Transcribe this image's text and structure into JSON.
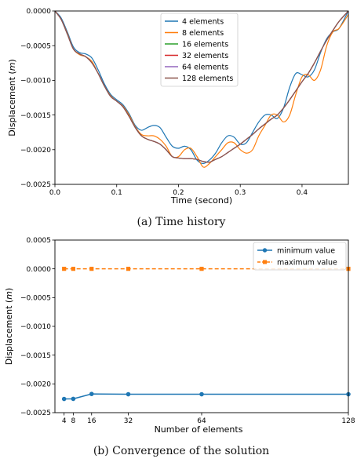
{
  "chart_data": [
    {
      "type": "line",
      "caption": "(a) Time history",
      "xlabel": "Time (second)",
      "ylabel_main": "Displacement (",
      "ylabel_unit": "m",
      "ylabel_end": ")",
      "xlim": [
        0,
        0.475
      ],
      "ylim": [
        -0.0025,
        0.0
      ],
      "xticks": [
        0.0,
        0.1,
        0.2,
        0.3,
        0.4
      ],
      "xtick_labels": [
        "0.0",
        "0.1",
        "0.2",
        "0.3",
        "0.4"
      ],
      "yticks": [
        0.0,
        -0.0005,
        -0.001,
        -0.0015,
        -0.002,
        -0.0025
      ],
      "ytick_labels": [
        "0.0000",
        "−0.0005",
        "−0.0010",
        "−0.0015",
        "−0.0020",
        "−0.0025"
      ],
      "grid": false,
      "legend_position": "top-center",
      "series": [
        {
          "name": "4 elements",
          "color": "#1f77b4",
          "x": [
            0,
            0.01,
            0.02,
            0.03,
            0.04,
            0.05,
            0.06,
            0.07,
            0.08,
            0.09,
            0.1,
            0.11,
            0.12,
            0.13,
            0.14,
            0.15,
            0.16,
            0.17,
            0.18,
            0.19,
            0.2,
            0.21,
            0.22,
            0.23,
            0.24,
            0.25,
            0.26,
            0.27,
            0.28,
            0.29,
            0.3,
            0.31,
            0.32,
            0.33,
            0.34,
            0.35,
            0.36,
            0.37,
            0.38,
            0.39,
            0.4,
            0.41,
            0.42,
            0.43,
            0.44,
            0.45,
            0.46,
            0.475
          ],
          "y": [
            0.0,
            -0.0001,
            -0.0003,
            -0.00052,
            -0.0006,
            -0.00062,
            -0.00068,
            -0.00085,
            -0.00105,
            -0.0012,
            -0.00128,
            -0.00135,
            -0.00148,
            -0.00165,
            -0.00172,
            -0.00168,
            -0.00165,
            -0.00168,
            -0.00182,
            -0.00195,
            -0.00198,
            -0.00195,
            -0.002,
            -0.00215,
            -0.0022,
            -0.00215,
            -0.00205,
            -0.0019,
            -0.0018,
            -0.00182,
            -0.00192,
            -0.0019,
            -0.00175,
            -0.0016,
            -0.0015,
            -0.0015,
            -0.00155,
            -0.0014,
            -0.0011,
            -0.0009,
            -0.00092,
            -0.00095,
            -0.00085,
            -0.0006,
            -0.0004,
            -0.0003,
            -0.00025,
            0.0
          ]
        },
        {
          "name": "8 elements",
          "color": "#ff7f0e",
          "x": [
            0,
            0.01,
            0.02,
            0.03,
            0.04,
            0.05,
            0.06,
            0.07,
            0.08,
            0.09,
            0.1,
            0.11,
            0.12,
            0.13,
            0.14,
            0.15,
            0.16,
            0.17,
            0.18,
            0.19,
            0.2,
            0.21,
            0.22,
            0.23,
            0.24,
            0.25,
            0.26,
            0.27,
            0.28,
            0.29,
            0.3,
            0.31,
            0.32,
            0.33,
            0.34,
            0.35,
            0.36,
            0.37,
            0.38,
            0.39,
            0.4,
            0.41,
            0.42,
            0.43,
            0.44,
            0.45,
            0.46,
            0.475
          ],
          "y": [
            0.0,
            -0.00012,
            -0.00032,
            -0.00055,
            -0.00063,
            -0.00066,
            -0.00073,
            -0.0009,
            -0.00108,
            -0.00122,
            -0.0013,
            -0.00137,
            -0.0015,
            -0.00167,
            -0.00178,
            -0.0018,
            -0.0018,
            -0.00185,
            -0.00195,
            -0.0021,
            -0.0021,
            -0.002,
            -0.00198,
            -0.0021,
            -0.00225,
            -0.0022,
            -0.0021,
            -0.002,
            -0.0019,
            -0.0019,
            -0.002,
            -0.00205,
            -0.002,
            -0.0018,
            -0.00165,
            -0.0015,
            -0.0015,
            -0.0016,
            -0.0015,
            -0.0012,
            -0.00095,
            -0.00092,
            -0.001,
            -0.00085,
            -0.0005,
            -0.0003,
            -0.00025,
            -5e-05
          ]
        },
        {
          "name": "16 elements",
          "color": "#2ca02c",
          "x": [
            0,
            0.01,
            0.02,
            0.03,
            0.04,
            0.05,
            0.06,
            0.07,
            0.08,
            0.09,
            0.1,
            0.11,
            0.12,
            0.13,
            0.14,
            0.15,
            0.16,
            0.17,
            0.18,
            0.19,
            0.2,
            0.21,
            0.22,
            0.23,
            0.24,
            0.25,
            0.26,
            0.27,
            0.28,
            0.29,
            0.3,
            0.31,
            0.32,
            0.33,
            0.34,
            0.35,
            0.36,
            0.37,
            0.38,
            0.39,
            0.4,
            0.41,
            0.42,
            0.43,
            0.44,
            0.45,
            0.46,
            0.475
          ],
          "y": [
            0.0,
            -0.00012,
            -0.00033,
            -0.00055,
            -0.00062,
            -0.00066,
            -0.00075,
            -0.0009,
            -0.00108,
            -0.00123,
            -0.0013,
            -0.00138,
            -0.00152,
            -0.00168,
            -0.0018,
            -0.00185,
            -0.00188,
            -0.00192,
            -0.002,
            -0.0021,
            -0.00212,
            -0.00213,
            -0.00213,
            -0.00214,
            -0.00217,
            -0.00218,
            -0.00214,
            -0.0021,
            -0.00204,
            -0.00198,
            -0.00192,
            -0.00185,
            -0.00178,
            -0.0017,
            -0.00163,
            -0.00156,
            -0.0015,
            -0.0014,
            -0.00128,
            -0.00115,
            -0.00102,
            -0.0009,
            -0.00075,
            -0.00058,
            -0.00042,
            -0.00028,
            -0.00015,
            0.0
          ]
        },
        {
          "name": "32 elements",
          "color": "#d62728",
          "x": [
            0,
            0.01,
            0.02,
            0.03,
            0.04,
            0.05,
            0.06,
            0.07,
            0.08,
            0.09,
            0.1,
            0.11,
            0.12,
            0.13,
            0.14,
            0.15,
            0.16,
            0.17,
            0.18,
            0.19,
            0.2,
            0.21,
            0.22,
            0.23,
            0.24,
            0.25,
            0.26,
            0.27,
            0.28,
            0.29,
            0.3,
            0.31,
            0.32,
            0.33,
            0.34,
            0.35,
            0.36,
            0.37,
            0.38,
            0.39,
            0.4,
            0.41,
            0.42,
            0.43,
            0.44,
            0.45,
            0.46,
            0.475
          ],
          "y": [
            0.0,
            -0.00012,
            -0.00033,
            -0.00055,
            -0.00062,
            -0.00066,
            -0.00075,
            -0.0009,
            -0.00108,
            -0.00123,
            -0.0013,
            -0.00138,
            -0.00152,
            -0.00168,
            -0.0018,
            -0.00185,
            -0.00188,
            -0.00192,
            -0.002,
            -0.0021,
            -0.00212,
            -0.00213,
            -0.00213,
            -0.00214,
            -0.00217,
            -0.00218,
            -0.00214,
            -0.0021,
            -0.00204,
            -0.00198,
            -0.00192,
            -0.00185,
            -0.00178,
            -0.0017,
            -0.00163,
            -0.00156,
            -0.0015,
            -0.0014,
            -0.00128,
            -0.00115,
            -0.00102,
            -0.0009,
            -0.00075,
            -0.00058,
            -0.00042,
            -0.00028,
            -0.00015,
            0.0
          ]
        },
        {
          "name": "64 elements",
          "color": "#9467bd",
          "x": [
            0,
            0.01,
            0.02,
            0.03,
            0.04,
            0.05,
            0.06,
            0.07,
            0.08,
            0.09,
            0.1,
            0.11,
            0.12,
            0.13,
            0.14,
            0.15,
            0.16,
            0.17,
            0.18,
            0.19,
            0.2,
            0.21,
            0.22,
            0.23,
            0.24,
            0.25,
            0.26,
            0.27,
            0.28,
            0.29,
            0.3,
            0.31,
            0.32,
            0.33,
            0.34,
            0.35,
            0.36,
            0.37,
            0.38,
            0.39,
            0.4,
            0.41,
            0.42,
            0.43,
            0.44,
            0.45,
            0.46,
            0.475
          ],
          "y": [
            0.0,
            -0.00012,
            -0.00033,
            -0.00055,
            -0.00062,
            -0.00066,
            -0.00075,
            -0.0009,
            -0.00108,
            -0.00123,
            -0.0013,
            -0.00138,
            -0.00152,
            -0.00168,
            -0.0018,
            -0.00185,
            -0.00188,
            -0.00192,
            -0.002,
            -0.0021,
            -0.00212,
            -0.00213,
            -0.00213,
            -0.00214,
            -0.00217,
            -0.00218,
            -0.00214,
            -0.0021,
            -0.00204,
            -0.00198,
            -0.00192,
            -0.00185,
            -0.00178,
            -0.0017,
            -0.00163,
            -0.00156,
            -0.0015,
            -0.0014,
            -0.00128,
            -0.00115,
            -0.00102,
            -0.0009,
            -0.00075,
            -0.00058,
            -0.00042,
            -0.00028,
            -0.00015,
            0.0
          ]
        },
        {
          "name": "128 elements",
          "color": "#8c564b",
          "x": [
            0,
            0.01,
            0.02,
            0.03,
            0.04,
            0.05,
            0.06,
            0.07,
            0.08,
            0.09,
            0.1,
            0.11,
            0.12,
            0.13,
            0.14,
            0.15,
            0.16,
            0.17,
            0.18,
            0.19,
            0.2,
            0.21,
            0.22,
            0.23,
            0.24,
            0.25,
            0.26,
            0.27,
            0.28,
            0.29,
            0.3,
            0.31,
            0.32,
            0.33,
            0.34,
            0.35,
            0.36,
            0.37,
            0.38,
            0.39,
            0.4,
            0.41,
            0.42,
            0.43,
            0.44,
            0.45,
            0.46,
            0.475
          ],
          "y": [
            0.0,
            -0.00012,
            -0.00033,
            -0.00055,
            -0.00062,
            -0.00066,
            -0.00075,
            -0.0009,
            -0.00108,
            -0.00123,
            -0.0013,
            -0.00138,
            -0.00152,
            -0.00168,
            -0.0018,
            -0.00185,
            -0.00188,
            -0.00192,
            -0.002,
            -0.0021,
            -0.00212,
            -0.00213,
            -0.00213,
            -0.00214,
            -0.00217,
            -0.00218,
            -0.00214,
            -0.0021,
            -0.00204,
            -0.00198,
            -0.00192,
            -0.00185,
            -0.00178,
            -0.0017,
            -0.00163,
            -0.00156,
            -0.0015,
            -0.0014,
            -0.00128,
            -0.00115,
            -0.00102,
            -0.0009,
            -0.00075,
            -0.00058,
            -0.00042,
            -0.00028,
            -0.00015,
            0.0
          ]
        }
      ]
    },
    {
      "type": "line",
      "caption": "(b) Convergence of the solution",
      "xlabel": "Number of elements",
      "ylabel_main": "Displacement (",
      "ylabel_unit": "m",
      "ylabel_end": ")",
      "xlim": [
        0,
        128
      ],
      "ylim": [
        -0.0025,
        0.0005
      ],
      "xticks": [
        4,
        8,
        16,
        32,
        64,
        128
      ],
      "xtick_labels": [
        "4",
        "8",
        "16",
        "32",
        "64",
        "128"
      ],
      "yticks": [
        0.0005,
        0.0,
        -0.0005,
        -0.001,
        -0.0015,
        -0.002,
        -0.0025
      ],
      "ytick_labels": [
        "0.0005",
        "0.0000",
        "−0.0005",
        "−0.0010",
        "−0.0015",
        "−0.0020",
        "−0.0025"
      ],
      "grid": false,
      "legend_position": "top-right",
      "series": [
        {
          "name": "minimum value",
          "color": "#1f77b4",
          "marker": "circle",
          "dash": "solid",
          "x": [
            4,
            8,
            16,
            32,
            64,
            128
          ],
          "y": [
            -0.002262,
            -0.00226,
            -0.002175,
            -0.00218,
            -0.00218,
            -0.00218
          ]
        },
        {
          "name": "maximum value",
          "color": "#ff7f0e",
          "marker": "square",
          "dash": "dashed",
          "x": [
            4,
            8,
            16,
            32,
            64,
            128
          ],
          "y": [
            0.0,
            0.0,
            0.0,
            0.0,
            0.0,
            0.0
          ]
        }
      ]
    }
  ]
}
